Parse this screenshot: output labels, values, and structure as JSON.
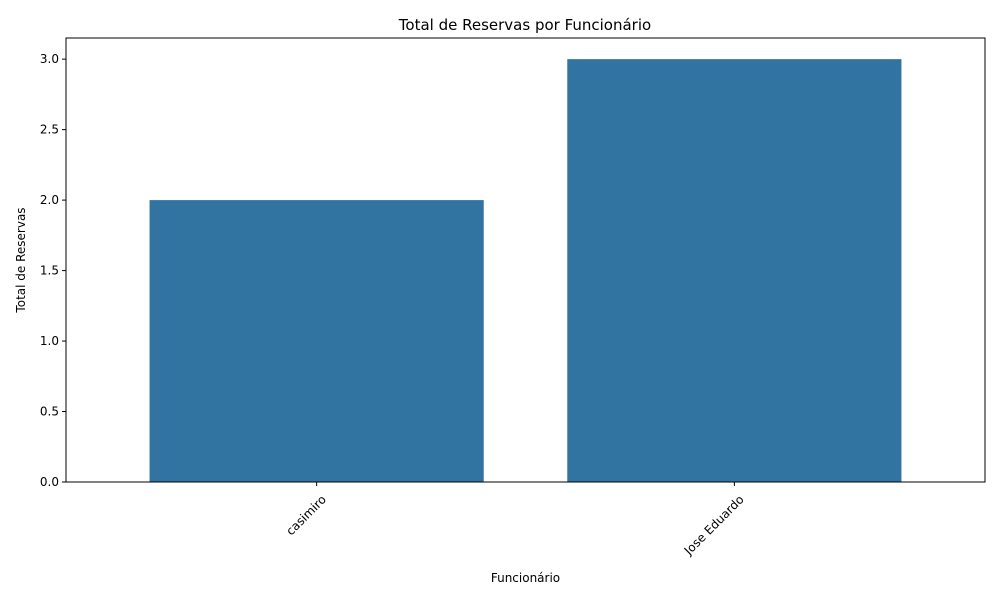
{
  "chart_data": {
    "type": "bar",
    "title": "Total de Reservas por Funcionário",
    "xlabel": "Funcionário",
    "ylabel": "Total de Reservas",
    "categories": [
      "casimiro",
      "Jose Eduardo"
    ],
    "values": [
      2,
      3
    ],
    "ylim": [
      0,
      3.15
    ],
    "yticks": [
      0.0,
      0.5,
      1.0,
      1.5,
      2.0,
      2.5,
      3.0
    ],
    "ytick_labels": [
      "0.0",
      "0.5",
      "1.0",
      "1.5",
      "2.0",
      "2.5",
      "3.0"
    ],
    "bar_color": "#3274a1",
    "grid": false,
    "xtick_rotation_deg": 45
  }
}
